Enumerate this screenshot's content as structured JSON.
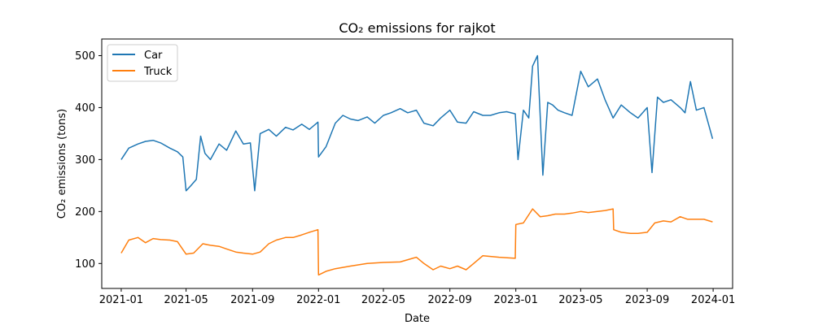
{
  "chart_data": {
    "type": "line",
    "title": "CO₂ emissions for rajkot",
    "xlabel": "Date",
    "ylabel": "CO₂ emissions (tons)",
    "x_tick_labels": [
      "2021-01",
      "2021-05",
      "2021-09",
      "2022-01",
      "2022-05",
      "2022-09",
      "2023-01",
      "2023-05",
      "2023-09",
      "2024-01"
    ],
    "y_ticks": [
      100,
      200,
      300,
      400,
      500
    ],
    "xlim": [
      "2020-11-26",
      "2024-02-06"
    ],
    "ylim": [
      52,
      532
    ],
    "legend_position": "top-left",
    "grid": false,
    "series": [
      {
        "name": "Car",
        "color": "#1f77b4",
        "x": [
          "2021-01-01",
          "2021-01-15",
          "2021-02-01",
          "2021-02-15",
          "2021-03-01",
          "2021-03-15",
          "2021-04-01",
          "2021-04-15",
          "2021-04-25",
          "2021-05-01",
          "2021-05-10",
          "2021-05-20",
          "2021-05-28",
          "2021-06-05",
          "2021-06-15",
          "2021-07-01",
          "2021-07-15",
          "2021-08-01",
          "2021-08-15",
          "2021-08-28",
          "2021-09-05",
          "2021-09-15",
          "2021-10-01",
          "2021-10-15",
          "2021-11-01",
          "2021-11-15",
          "2021-12-01",
          "2021-12-15",
          "2021-12-31",
          "2022-01-01",
          "2022-01-15",
          "2022-02-01",
          "2022-02-15",
          "2022-03-01",
          "2022-03-15",
          "2022-04-01",
          "2022-04-15",
          "2022-05-01",
          "2022-05-15",
          "2022-06-01",
          "2022-06-15",
          "2022-07-01",
          "2022-07-15",
          "2022-08-01",
          "2022-08-15",
          "2022-09-01",
          "2022-09-15",
          "2022-10-01",
          "2022-10-15",
          "2022-11-01",
          "2022-11-15",
          "2022-12-01",
          "2022-12-15",
          "2022-12-31",
          "2023-01-05",
          "2023-01-15",
          "2023-01-25",
          "2023-02-01",
          "2023-02-10",
          "2023-02-20",
          "2023-03-01",
          "2023-03-10",
          "2023-03-20",
          "2023-04-01",
          "2023-04-15",
          "2023-05-01",
          "2023-05-15",
          "2023-06-01",
          "2023-06-15",
          "2023-06-30",
          "2023-07-15",
          "2023-08-01",
          "2023-08-15",
          "2023-09-01",
          "2023-09-10",
          "2023-09-20",
          "2023-10-01",
          "2023-10-15",
          "2023-11-01",
          "2023-11-10",
          "2023-11-20",
          "2023-12-01",
          "2023-12-15",
          "2023-12-31"
        ],
        "values": [
          300,
          322,
          330,
          335,
          337,
          332,
          322,
          315,
          305,
          240,
          250,
          262,
          345,
          312,
          300,
          330,
          318,
          355,
          330,
          332,
          240,
          350,
          358,
          345,
          362,
          357,
          368,
          358,
          372,
          305,
          325,
          370,
          385,
          378,
          375,
          382,
          370,
          385,
          390,
          398,
          390,
          395,
          370,
          365,
          380,
          395,
          372,
          370,
          392,
          385,
          385,
          390,
          392,
          388,
          300,
          395,
          380,
          480,
          500,
          270,
          410,
          405,
          395,
          390,
          385,
          470,
          440,
          455,
          415,
          380,
          405,
          390,
          380,
          400,
          275,
          420,
          410,
          415,
          400,
          390,
          450,
          395,
          400,
          340
        ]
      },
      {
        "name": "Truck",
        "color": "#ff7f0e",
        "x": [
          "2021-01-01",
          "2021-01-15",
          "2021-02-01",
          "2021-02-15",
          "2021-03-01",
          "2021-03-15",
          "2021-04-01",
          "2021-04-15",
          "2021-05-01",
          "2021-05-15",
          "2021-06-01",
          "2021-06-15",
          "2021-07-01",
          "2021-07-15",
          "2021-08-01",
          "2021-08-15",
          "2021-09-01",
          "2021-09-15",
          "2021-10-01",
          "2021-10-15",
          "2021-11-01",
          "2021-11-15",
          "2021-12-01",
          "2021-12-15",
          "2021-12-31",
          "2022-01-01",
          "2022-01-15",
          "2022-02-01",
          "2022-03-01",
          "2022-04-01",
          "2022-05-01",
          "2022-06-01",
          "2022-07-01",
          "2022-07-15",
          "2022-08-01",
          "2022-08-15",
          "2022-09-01",
          "2022-09-15",
          "2022-10-01",
          "2022-10-15",
          "2022-11-01",
          "2022-12-01",
          "2022-12-31",
          "2023-01-01",
          "2023-01-15",
          "2023-02-01",
          "2023-02-15",
          "2023-03-01",
          "2023-03-15",
          "2023-04-01",
          "2023-04-15",
          "2023-05-01",
          "2023-05-15",
          "2023-06-01",
          "2023-06-15",
          "2023-06-30",
          "2023-07-01",
          "2023-07-15",
          "2023-08-01",
          "2023-08-15",
          "2023-09-01",
          "2023-09-15",
          "2023-10-01",
          "2023-10-15",
          "2023-11-01",
          "2023-11-15",
          "2023-12-01",
          "2023-12-15",
          "2023-12-31"
        ],
        "values": [
          120,
          145,
          150,
          140,
          148,
          146,
          145,
          142,
          118,
          120,
          138,
          135,
          133,
          128,
          122,
          120,
          118,
          122,
          138,
          145,
          150,
          150,
          155,
          160,
          165,
          78,
          85,
          90,
          95,
          100,
          102,
          103,
          112,
          100,
          88,
          95,
          90,
          95,
          88,
          100,
          115,
          112,
          110,
          175,
          178,
          205,
          190,
          192,
          195,
          195,
          197,
          200,
          198,
          200,
          202,
          205,
          165,
          160,
          158,
          158,
          160,
          178,
          182,
          180,
          190,
          185,
          185,
          185,
          180
        ]
      }
    ]
  }
}
